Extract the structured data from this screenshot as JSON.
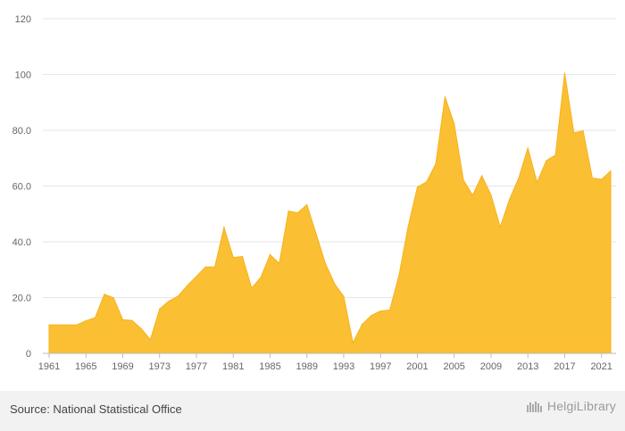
{
  "footer": {
    "source": "Source: National Statistical Office",
    "brand": "HelgiLibrary"
  },
  "colors": {
    "area_fill": "#fbbf33",
    "area_stroke": "#f6b21b",
    "grid": "#e6e6e6",
    "axis": "#bbbbbb",
    "tick_text": "#666666",
    "footer_bg": "#f2f2f2"
  },
  "chart_data": {
    "type": "area",
    "xlabel": "",
    "ylabel": "",
    "grid": true,
    "legend": "none",
    "ylim": [
      0,
      120
    ],
    "y_ticks": [
      "0",
      "20.0",
      "40.0",
      "60.0",
      "80.0",
      "100",
      "120"
    ],
    "y_tick_values": [
      0,
      20,
      40,
      60,
      80,
      100,
      120
    ],
    "x_ticks": [
      "1961",
      "1965",
      "1969",
      "1973",
      "1977",
      "1981",
      "1985",
      "1989",
      "1993",
      "1997",
      "2001",
      "2005",
      "2009",
      "2013",
      "2017",
      "2021"
    ],
    "x_tick_values": [
      1961,
      1965,
      1969,
      1973,
      1977,
      1981,
      1985,
      1989,
      1993,
      1997,
      2001,
      2005,
      2009,
      2013,
      2017,
      2021
    ],
    "x": [
      1961,
      1962,
      1963,
      1964,
      1965,
      1966,
      1967,
      1968,
      1969,
      1970,
      1971,
      1972,
      1973,
      1974,
      1975,
      1976,
      1977,
      1978,
      1979,
      1980,
      1981,
      1982,
      1983,
      1984,
      1985,
      1986,
      1987,
      1988,
      1989,
      1990,
      1991,
      1992,
      1993,
      1994,
      1995,
      1996,
      1997,
      1998,
      1999,
      2000,
      2001,
      2002,
      2003,
      2004,
      2005,
      2006,
      2007,
      2008,
      2009,
      2010,
      2011,
      2012,
      2013,
      2014,
      2015,
      2016,
      2017,
      2018,
      2019,
      2020,
      2021,
      2022
    ],
    "series": [
      {
        "values": [
          10.2,
          10.2,
          10.2,
          10.2,
          11.7,
          12.8,
          21.2,
          19.9,
          12.1,
          11.8,
          8.9,
          4.9,
          15.9,
          18.7,
          20.5,
          24.3,
          27.6,
          31,
          31,
          45.2,
          34.4,
          34.7,
          23.4,
          27.3,
          35.4,
          32.3,
          51,
          50.4,
          53.3,
          42.9,
          32.3,
          25,
          20.4,
          3.8,
          10.4,
          13.6,
          15.2,
          15.5,
          27.9,
          45.5,
          59.6,
          61.5,
          68,
          92,
          82.3,
          62.2,
          56.7,
          63.7,
          56.8,
          45.3,
          55.2,
          62.8,
          73.6,
          61.3,
          69.1,
          71.1,
          100.5,
          79.1,
          79.8,
          62.9,
          62.4,
          65.4
        ]
      }
    ]
  }
}
